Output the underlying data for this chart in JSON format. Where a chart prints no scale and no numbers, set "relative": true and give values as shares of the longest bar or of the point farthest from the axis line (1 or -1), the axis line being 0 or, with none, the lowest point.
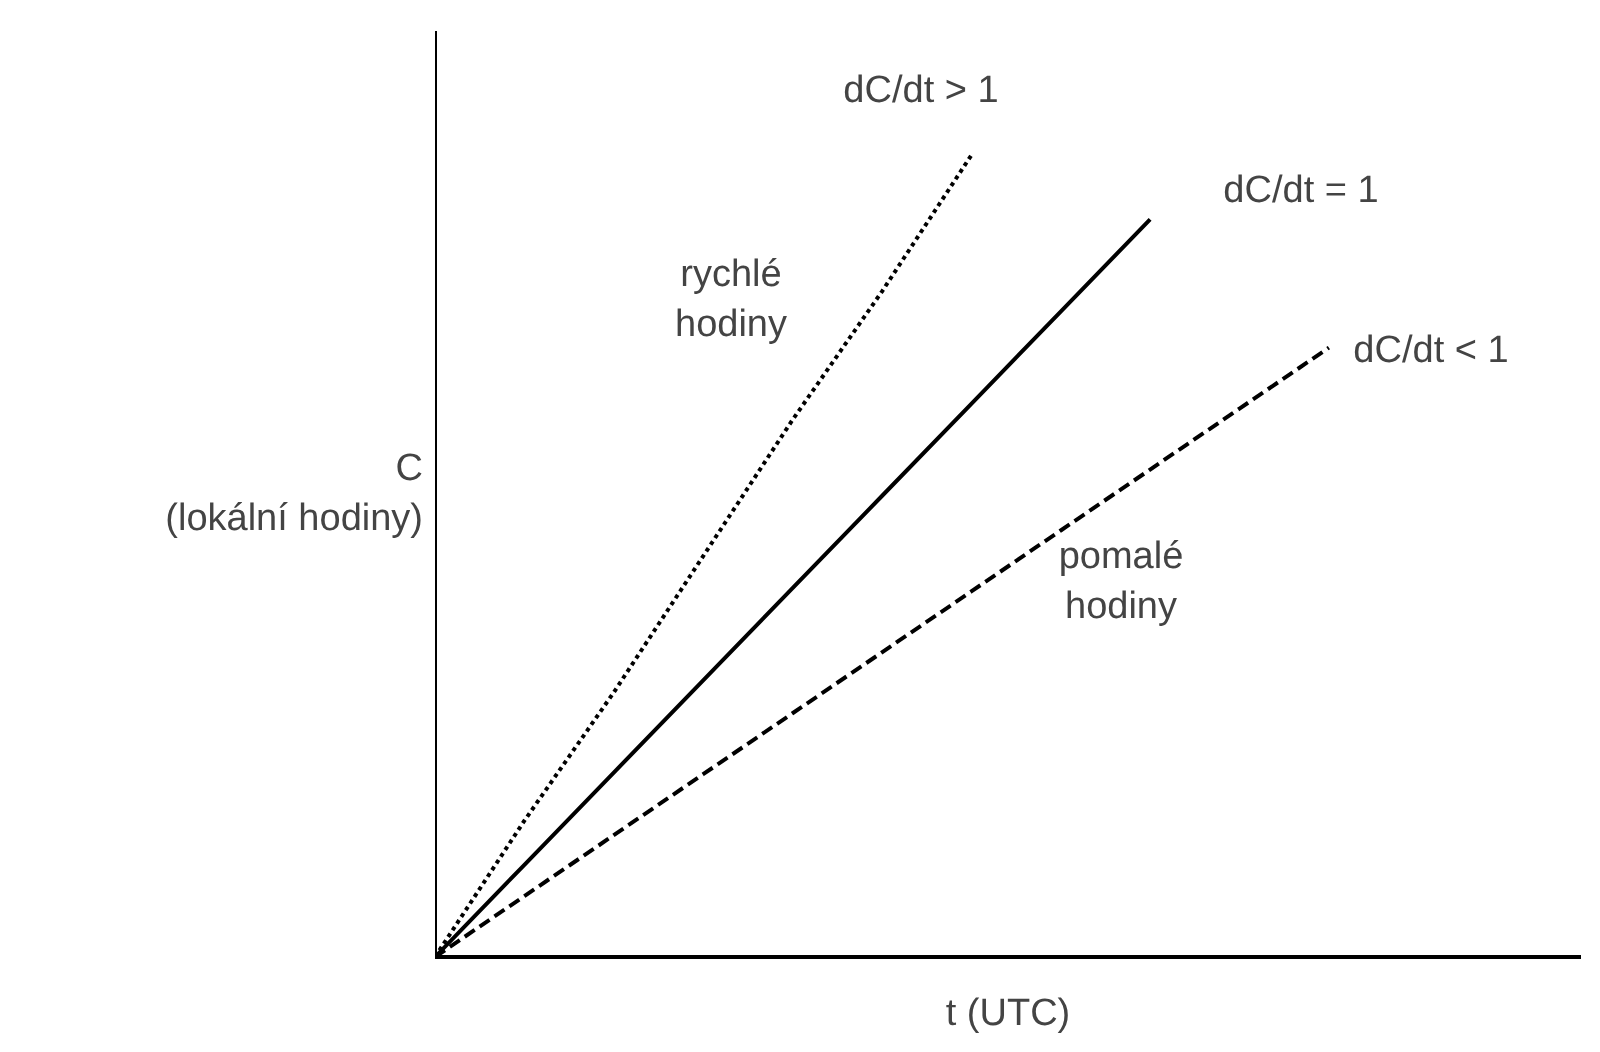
{
  "chart_data": {
    "type": "line",
    "relative": true,
    "xlabel": "t (UTC)",
    "ylabel": "C\n(lokální hodiny)",
    "categories": [
      null,
      null,
      null,
      null,
      null,
      null,
      null,
      null,
      null,
      null,
      null
    ],
    "series": [
      {
        "values": [
          0,
          0.17,
          0.33,
          0.5,
          0.67,
          0.83,
          1,
          null,
          null,
          null,
          null
        ],
        "color": "#000000",
        "line_style": "dotted"
      },
      {
        "values": [
          0,
          0.115,
          0.23,
          0.345,
          0.46,
          0.575,
          0.69,
          0.805,
          0.92,
          null,
          null
        ],
        "color": "#000000",
        "line_style": "solid"
      },
      {
        "values": [
          0,
          0.076,
          0.152,
          0.228,
          0.304,
          0.38,
          0.456,
          0.532,
          0.608,
          0.684,
          0.76
        ],
        "color": "#000000",
        "line_style": "dashed"
      }
    ],
    "annotations": [
      "dC/dt > 1",
      "dC/dt = 1",
      "dC/dt < 1",
      "rychlé hodiny",
      "pomalé hodiny"
    ]
  }
}
